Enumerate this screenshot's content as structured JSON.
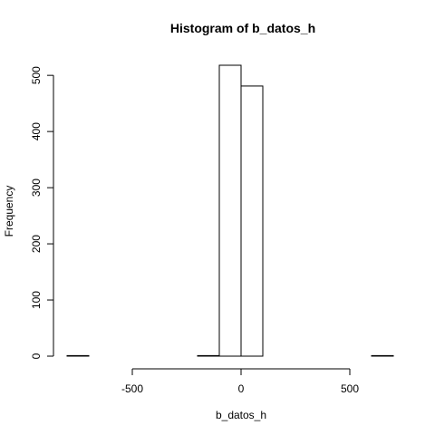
{
  "chart_data": {
    "type": "bar",
    "title": "Histogram of b_datos_h",
    "xlabel": "b_datos_h",
    "ylabel": "Frequency",
    "bin_edges": [
      -800,
      -700,
      -600,
      -500,
      -400,
      -300,
      -200,
      -100,
      0,
      100,
      200,
      300,
      400,
      500,
      600,
      700
    ],
    "values": [
      1,
      0,
      0,
      0,
      0,
      0,
      1,
      518,
      481,
      0,
      0,
      0,
      0,
      0,
      1
    ],
    "xlim": [
      -800,
      700
    ],
    "ylim": [
      0,
      518
    ],
    "x_ticks": [
      -500,
      0,
      500
    ],
    "x_tick_labels": [
      "-500",
      "0",
      "500"
    ],
    "y_ticks": [
      0,
      100,
      200,
      300,
      400,
      500
    ],
    "y_tick_labels": [
      "0",
      "100",
      "200",
      "300",
      "400",
      "500"
    ],
    "grid": false,
    "legend": "none"
  }
}
